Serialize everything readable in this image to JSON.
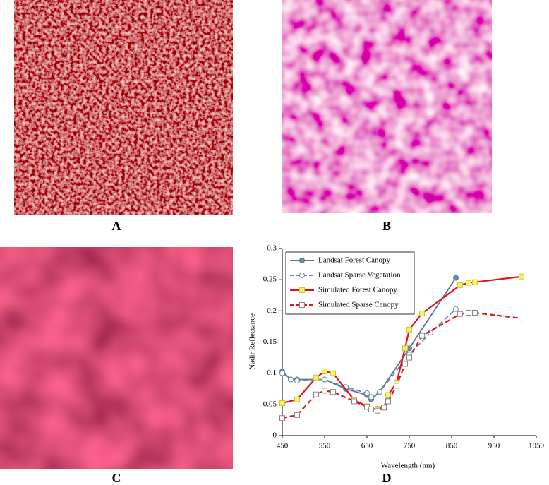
{
  "panels": {
    "labels": [
      "A",
      "B",
      "C",
      "D"
    ]
  },
  "chart_data": {
    "type": "line",
    "x_label": "Wavelength (nm)",
    "y_label": "Nadir Reflectance",
    "xlim": [
      450,
      1050
    ],
    "xticks": [
      450,
      550,
      650,
      750,
      850,
      950,
      1050
    ],
    "ylim": [
      0,
      0.3
    ],
    "yticks": [
      0,
      0.05,
      0.1,
      0.15,
      0.2,
      0.25,
      0.3
    ],
    "legend": "upper left",
    "series": [
      {
        "name": "Landsat Forest Canopy",
        "color": "#5b7590",
        "dash": "solid",
        "marker": "circle",
        "marker_fill": "#6f8aa6",
        "x": [
          450,
          470,
          485,
          550,
          600,
          650,
          660,
          680,
          750,
          860
        ],
        "values": [
          0.103,
          0.09,
          0.09,
          0.09,
          0.075,
          0.065,
          0.058,
          0.07,
          0.14,
          0.253
        ]
      },
      {
        "name": "Landsat Sparse Vegetation",
        "color": "#6f8aa6",
        "dash": "dashed",
        "marker": "circle",
        "marker_fill": "#ffffff",
        "x": [
          450,
          470,
          485,
          550,
          600,
          650,
          660,
          680,
          750,
          800,
          860
        ],
        "values": [
          0.1,
          0.09,
          0.088,
          0.09,
          0.078,
          0.068,
          0.062,
          0.07,
          0.13,
          0.165,
          0.203
        ]
      },
      {
        "name": "Simulated Forest Canopy",
        "color": "#e0141e",
        "dash": "solid",
        "marker": "square",
        "marker_fill": "#f4f46a",
        "x": [
          450,
          485,
          530,
          550,
          570,
          620,
          650,
          660,
          675,
          690,
          700,
          720,
          740,
          750,
          780,
          870,
          890,
          905,
          1015
        ],
        "values": [
          0.052,
          0.058,
          0.093,
          0.103,
          0.1,
          0.057,
          0.047,
          0.042,
          0.043,
          0.045,
          0.065,
          0.085,
          0.14,
          0.17,
          0.196,
          0.241,
          0.245,
          0.246,
          0.255
        ]
      },
      {
        "name": "Simulated Sparse Canopy",
        "color": "#e0141e",
        "dash": "dashed",
        "marker": "square",
        "marker_fill": "#ffffff",
        "x": [
          450,
          485,
          530,
          550,
          570,
          620,
          650,
          660,
          675,
          690,
          700,
          720,
          740,
          750,
          780,
          870,
          890,
          905,
          1015
        ],
        "values": [
          0.028,
          0.033,
          0.066,
          0.072,
          0.07,
          0.055,
          0.046,
          0.042,
          0.04,
          0.045,
          0.055,
          0.08,
          0.115,
          0.125,
          0.16,
          0.195,
          0.197,
          0.197,
          0.188
        ]
      }
    ]
  }
}
